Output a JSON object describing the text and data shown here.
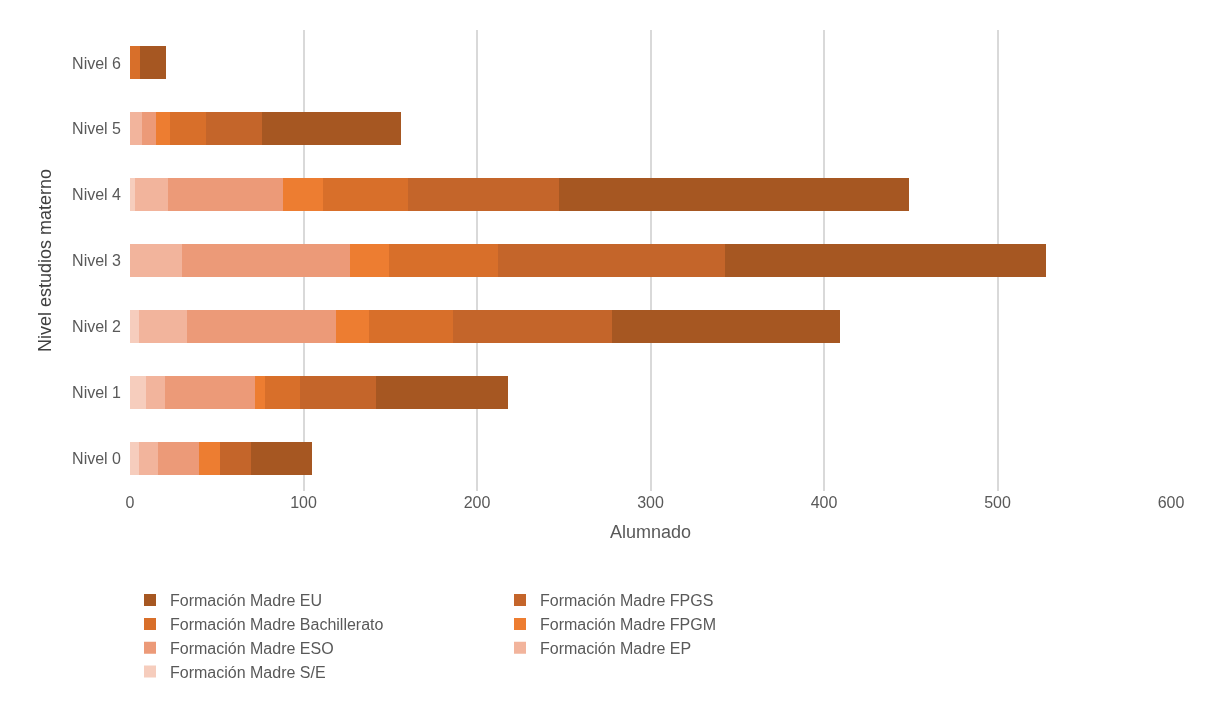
{
  "chart_data": {
    "type": "bar",
    "orientation": "horizontal",
    "stacked": true,
    "xlabel": "Alumnado",
    "ylabel": "Nivel estudios materno",
    "categories": [
      "Nivel 6",
      "Nivel 5",
      "Nivel 4",
      "Nivel 3",
      "Nivel 2",
      "Nivel 1",
      "Nivel 0"
    ],
    "xlim": [
      0,
      600
    ],
    "xticks": [
      0,
      100,
      200,
      300,
      400,
      500,
      600
    ],
    "grid": "x",
    "legend": "bottom",
    "series": [
      {
        "name": "Formación Madre S/E",
        "color": "#f6cdbd",
        "values": [
          0,
          0,
          3,
          0,
          5,
          9,
          5
        ]
      },
      {
        "name": "Formación Madre EP",
        "color": "#f2b49c",
        "values": [
          0,
          7,
          19,
          30,
          28,
          11,
          11
        ]
      },
      {
        "name": "Formación Madre ESO",
        "color": "#ec9a78",
        "values": [
          0,
          8,
          66,
          97,
          86,
          52,
          24
        ]
      },
      {
        "name": "Formación Madre FPGM",
        "color": "#ed7d31",
        "values": [
          0,
          8,
          23,
          22,
          19,
          6,
          12
        ]
      },
      {
        "name": "Formación Madre Bachillerato",
        "color": "#d86f2a",
        "values": [
          6,
          21,
          49,
          63,
          48,
          20,
          0
        ]
      },
      {
        "name": "Formación Madre FPGS",
        "color": "#c4652a",
        "values": [
          0,
          32,
          87,
          131,
          92,
          44,
          18
        ]
      },
      {
        "name": "Formación Madre EU",
        "color": "#a65722",
        "values": [
          15,
          80,
          202,
          185,
          131,
          76,
          35
        ]
      }
    ]
  }
}
